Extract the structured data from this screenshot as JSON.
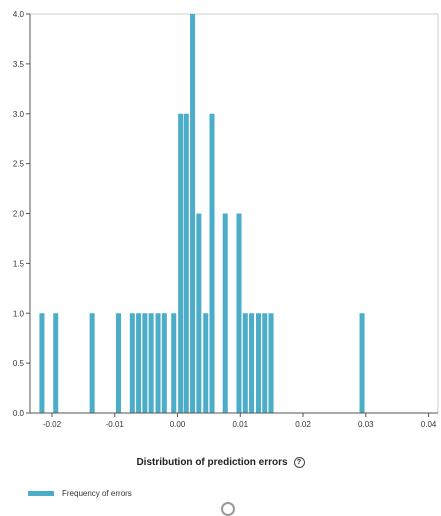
{
  "chart_data": {
    "type": "bar",
    "title": "",
    "xlabel": "Distribution of prediction errors",
    "ylabel": "",
    "bar_color": "#4cadc9",
    "xlim": [
      -0.0235,
      0.0415
    ],
    "ylim": [
      0,
      4
    ],
    "x_ticks": [
      -0.02,
      -0.01,
      0.0,
      0.01,
      0.02,
      0.03,
      0.04
    ],
    "x_tick_labels": [
      "-0.02",
      "-0.01",
      "0.00",
      "0.01",
      "0.02",
      "0.03",
      "0.04"
    ],
    "y_ticks": [
      0,
      0.5,
      1.0,
      1.5,
      2.0,
      2.5,
      3.0,
      3.5,
      4.0
    ],
    "y_tick_labels": [
      "0.0",
      "0.5",
      "1.0",
      "1.5",
      "2.0",
      "2.5",
      "3.0",
      "3.5",
      "4.0"
    ],
    "bin_width": 0.0008,
    "series": [
      {
        "name": "Frequency of errors",
        "bars": [
          {
            "x": -0.0216,
            "y": 1
          },
          {
            "x": -0.0194,
            "y": 1
          },
          {
            "x": -0.0136,
            "y": 1
          },
          {
            "x": -0.0094,
            "y": 1
          },
          {
            "x": -0.0072,
            "y": 1
          },
          {
            "x": -0.0062,
            "y": 1
          },
          {
            "x": -0.0052,
            "y": 1
          },
          {
            "x": -0.0042,
            "y": 1
          },
          {
            "x": -0.0031,
            "y": 1
          },
          {
            "x": -0.0021,
            "y": 1
          },
          {
            "x": -0.0006,
            "y": 1
          },
          {
            "x": 0.0005,
            "y": 3
          },
          {
            "x": 0.0014,
            "y": 3
          },
          {
            "x": 0.0024,
            "y": 4
          },
          {
            "x": 0.0034,
            "y": 2
          },
          {
            "x": 0.0045,
            "y": 1
          },
          {
            "x": 0.0055,
            "y": 3
          },
          {
            "x": 0.0076,
            "y": 2
          },
          {
            "x": 0.0098,
            "y": 2
          },
          {
            "x": 0.0108,
            "y": 1
          },
          {
            "x": 0.0118,
            "y": 1
          },
          {
            "x": 0.0129,
            "y": 1
          },
          {
            "x": 0.0139,
            "y": 1
          },
          {
            "x": 0.0149,
            "y": 1
          },
          {
            "x": 0.0294,
            "y": 1
          }
        ]
      }
    ],
    "legend": {
      "position": "bottom-left",
      "entries": [
        "Frequency of errors"
      ]
    },
    "grid": false
  },
  "help_icon_name": "help-circle-icon"
}
